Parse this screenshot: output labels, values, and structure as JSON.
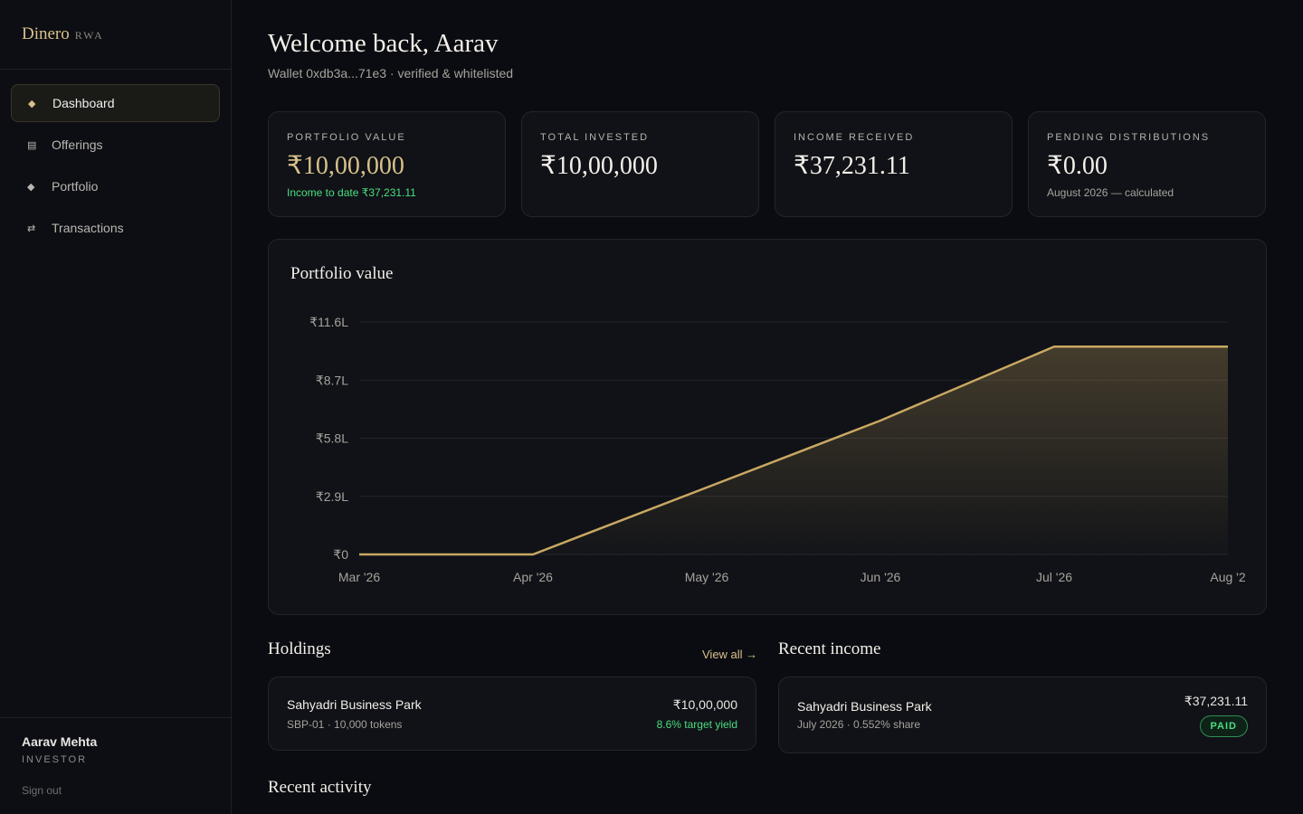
{
  "sidebar": {
    "brand": "Dinero",
    "brand_tag": "RWA",
    "nav": [
      "Dashboard",
      "Offerings",
      "Portfolio",
      "Transactions"
    ],
    "user": {
      "name": "Aarav Mehta",
      "role": "INVESTOR"
    },
    "sign_out": "Sign out"
  },
  "header": {
    "title": "Welcome back, Aarav",
    "subtitle": "Wallet 0xdb3a...71e3 · verified & whitelisted"
  },
  "stats": [
    {
      "label": "PORTFOLIO VALUE",
      "value": "₹10,00,000",
      "note": "Income to date ₹37,231.11"
    },
    {
      "label": "TOTAL INVESTED",
      "value": "₹10,00,000"
    },
    {
      "label": "INCOME RECEIVED",
      "value": "₹37,231.11"
    },
    {
      "label": "PENDING DISTRIBUTIONS",
      "value": "₹0.00",
      "note": "August 2026 — calculated"
    }
  ],
  "chart_data": {
    "type": "line",
    "title": "Portfolio value",
    "categories": [
      "Mar '26",
      "Apr '26",
      "May '26",
      "Jun '26",
      "Jul '26",
      "Aug '2"
    ],
    "values": [
      0,
      0,
      3.34,
      6.68,
      10.37,
      10.37
    ],
    "color": "#c9a862",
    "ylim": [
      0,
      11.6
    ],
    "yticks": [
      {
        "value": 0,
        "label": "₹0"
      },
      {
        "value": 2.9,
        "label": "₹2.9L"
      },
      {
        "value": 5.8,
        "label": "₹5.8L"
      },
      {
        "value": 8.7,
        "label": "₹8.7L"
      },
      {
        "value": 11.6,
        "label": "₹11.6L"
      }
    ],
    "grid": true
  },
  "holdings": {
    "title": "Holdings",
    "link": "View all →",
    "items": [
      {
        "name": "Sahyadri Business Park",
        "meta": "SBP-01 · 10,000 tokens",
        "value": "₹10,00,000",
        "yield": "8.6% target yield"
      }
    ]
  },
  "income": {
    "title": "Recent income",
    "items": [
      {
        "name": "Sahyadri Business Park",
        "meta": "July 2026 · 0.552% share",
        "amount": "₹37,231.11",
        "status": "PAID"
      }
    ]
  },
  "activity": {
    "title": "Recent activity"
  }
}
